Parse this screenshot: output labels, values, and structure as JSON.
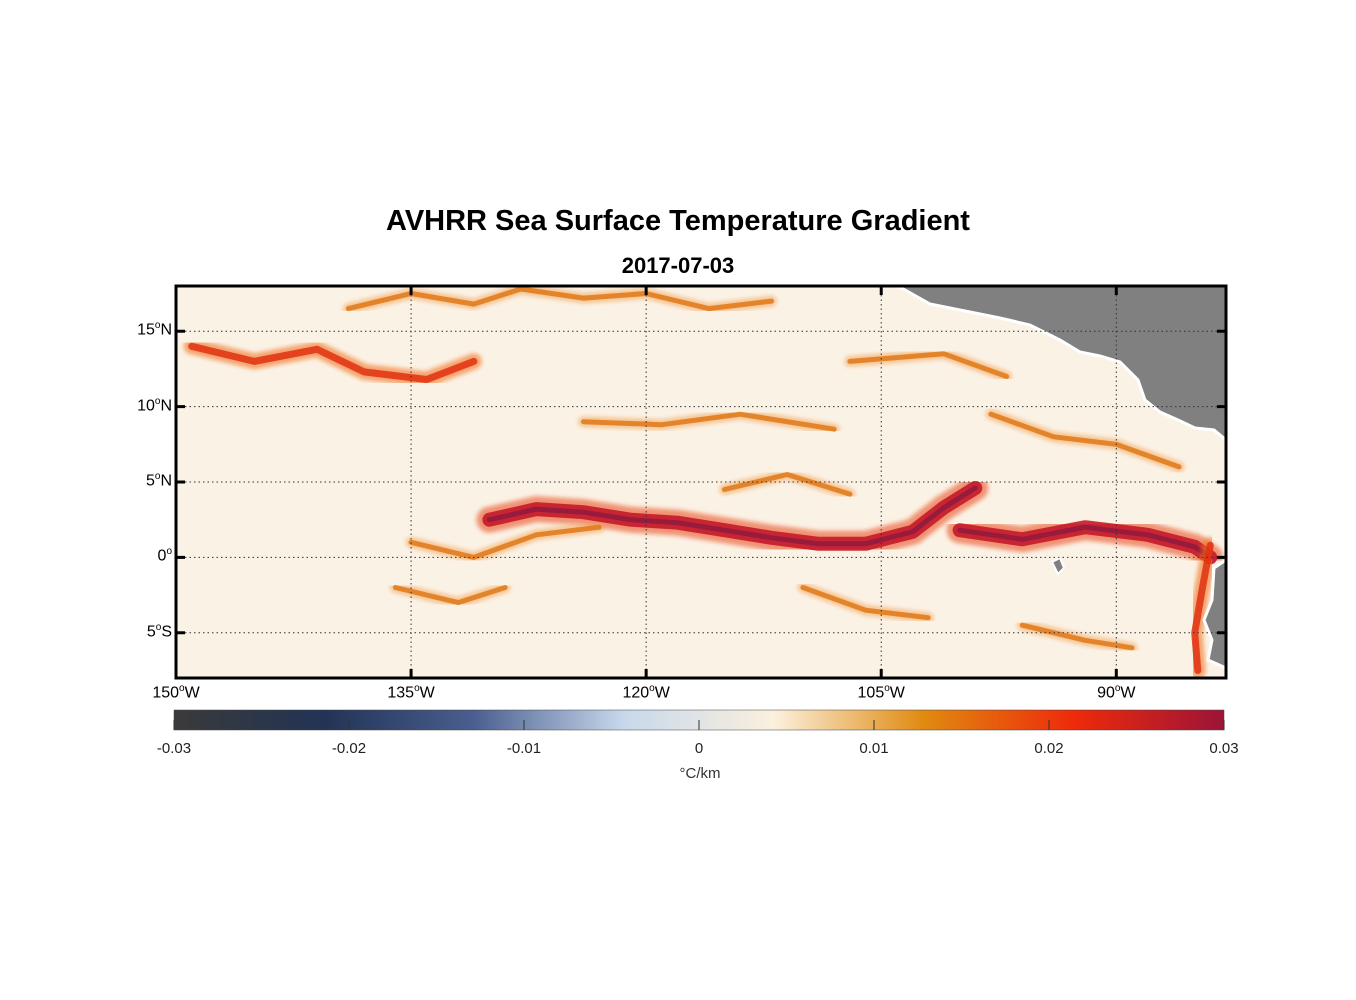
{
  "title": "AVHRR Sea Surface Temperature Gradient",
  "subtitle": "2017-07-03",
  "map": {
    "lon_range": [
      -150,
      -83
    ],
    "lat_range": [
      -8,
      18
    ],
    "land_color": "#808080",
    "lat_ticks": [
      {
        "value": 15,
        "deg": "15",
        "hemi": "N"
      },
      {
        "value": 10,
        "deg": "10",
        "hemi": "N"
      },
      {
        "value": 5,
        "deg": "5",
        "hemi": "N"
      },
      {
        "value": 0,
        "deg": "0",
        "hemi": ""
      },
      {
        "value": -5,
        "deg": "5",
        "hemi": "S"
      }
    ],
    "lon_ticks": [
      {
        "value": -150,
        "deg": "150",
        "hemi": "W"
      },
      {
        "value": -135,
        "deg": "135",
        "hemi": "W"
      },
      {
        "value": -120,
        "deg": "120",
        "hemi": "W"
      },
      {
        "value": -105,
        "deg": "105",
        "hemi": "W"
      },
      {
        "value": -90,
        "deg": "90",
        "hemi": "W"
      }
    ]
  },
  "colorbar": {
    "min": -0.03,
    "max": 0.03,
    "ticks": [
      "-0.03",
      "-0.02",
      "-0.01",
      "0",
      "0.01",
      "0.02",
      "0.03"
    ],
    "units": "°C/km",
    "colors": [
      "#3a3a3a",
      "#223355",
      "#4a5f90",
      "#c8d8ec",
      "#fbf0dd",
      "#e08a10",
      "#ee2a0a",
      "#9c1438"
    ]
  },
  "fronts": [
    {
      "level": "strong",
      "points": [
        [
          -130,
          2.5
        ],
        [
          -127,
          3.2
        ],
        [
          -124,
          3
        ],
        [
          -121,
          2.5
        ],
        [
          -118,
          2.3
        ],
        [
          -115,
          1.8
        ],
        [
          -112,
          1.3
        ],
        [
          -109,
          0.9
        ],
        [
          -106,
          0.9
        ],
        [
          -103,
          1.7
        ],
        [
          -101,
          3.3
        ],
        [
          -99,
          4.6
        ]
      ]
    },
    {
      "level": "strong",
      "points": [
        [
          -100,
          1.8
        ],
        [
          -96,
          1.2
        ],
        [
          -92,
          2.0
        ],
        [
          -88,
          1.5
        ],
        [
          -85,
          0.7
        ],
        [
          -84,
          0
        ]
      ]
    },
    {
      "level": "medium",
      "points": [
        [
          -84,
          0.8
        ],
        [
          -84.5,
          -2
        ],
        [
          -85,
          -5
        ],
        [
          -84.8,
          -7.5
        ]
      ]
    },
    {
      "level": "medium",
      "points": [
        [
          -149,
          14
        ],
        [
          -145,
          13
        ],
        [
          -141,
          13.8
        ],
        [
          -138,
          12.3
        ],
        [
          -134,
          11.8
        ],
        [
          -131,
          13
        ]
      ]
    },
    {
      "level": "weak",
      "points": [
        [
          -139,
          16.5
        ],
        [
          -135,
          17.5
        ],
        [
          -131,
          16.8
        ],
        [
          -128,
          17.8
        ],
        [
          -124,
          17.2
        ],
        [
          -120,
          17.5
        ],
        [
          -116,
          16.5
        ],
        [
          -112,
          17
        ]
      ]
    },
    {
      "level": "weak",
      "points": [
        [
          -135,
          1
        ],
        [
          -131,
          0
        ],
        [
          -127,
          1.5
        ],
        [
          -123,
          2
        ]
      ]
    },
    {
      "level": "weak",
      "points": [
        [
          -136,
          -2
        ],
        [
          -132,
          -3
        ],
        [
          -129,
          -2
        ]
      ]
    },
    {
      "level": "weak",
      "points": [
        [
          -115,
          4.5
        ],
        [
          -111,
          5.5
        ],
        [
          -107,
          4.2
        ]
      ]
    },
    {
      "level": "weak",
      "points": [
        [
          -124,
          9
        ],
        [
          -119,
          8.8
        ],
        [
          -114,
          9.5
        ],
        [
          -108,
          8.5
        ]
      ]
    },
    {
      "level": "weak",
      "points": [
        [
          -98,
          9.5
        ],
        [
          -94,
          8
        ],
        [
          -90,
          7.5
        ],
        [
          -86,
          6
        ]
      ]
    },
    {
      "level": "weak",
      "points": [
        [
          -96,
          -4.5
        ],
        [
          -92,
          -5.5
        ],
        [
          -89,
          -6
        ]
      ]
    },
    {
      "level": "weak",
      "points": [
        [
          -107,
          13
        ],
        [
          -101,
          13.5
        ],
        [
          -97,
          12
        ]
      ]
    },
    {
      "level": "weak",
      "points": [
        [
          -110,
          -2
        ],
        [
          -106,
          -3.5
        ],
        [
          -102,
          -4
        ]
      ]
    }
  ]
}
